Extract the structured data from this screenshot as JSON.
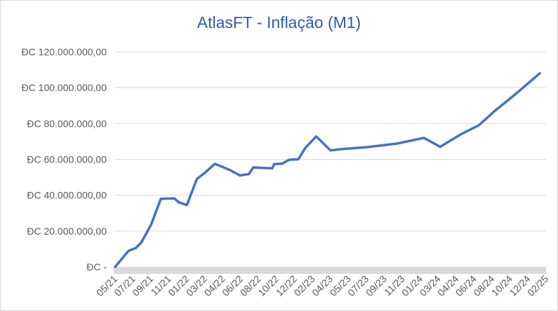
{
  "chart_data": {
    "type": "line",
    "title": "AtlasFT - Inflação (M1)",
    "xlabel": "",
    "ylabel": "",
    "ylim": [
      0,
      120000000
    ],
    "y_tick_labels": [
      "ĐC -",
      "ĐC 20.000.000,00",
      "ĐC 40.000.000,00",
      "ĐC 60.000.000,00",
      "ĐC 80.000.000,00",
      "ĐC 100.000.000,00",
      "ĐC 120.000.000,00"
    ],
    "y_tick_values": [
      0,
      20000000,
      40000000,
      60000000,
      80000000,
      100000000,
      120000000
    ],
    "x_tick_labels": [
      "05/21",
      "07/21",
      "09/21",
      "11/21",
      "01/22",
      "03/22",
      "04/22",
      "06/22",
      "08/22",
      "10/22",
      "12/22",
      "02/23",
      "04/23",
      "05/23",
      "07/23",
      "09/23",
      "11/23",
      "01/24",
      "03/24",
      "04/24",
      "06/24",
      "08/24",
      "10/24",
      "12/24",
      "02/25"
    ],
    "grid": true,
    "line_color": "#4472c4",
    "series": [
      {
        "name": "",
        "points": [
          {
            "x": 0.0,
            "y": 0
          },
          {
            "x": 0.75,
            "y": 9000000
          },
          {
            "x": 1.15,
            "y": 10500000
          },
          {
            "x": 1.45,
            "y": 13500000
          },
          {
            "x": 2.0,
            "y": 23500000
          },
          {
            "x": 2.55,
            "y": 38000000
          },
          {
            "x": 3.3,
            "y": 38200000
          },
          {
            "x": 3.55,
            "y": 36000000
          },
          {
            "x": 4.0,
            "y": 34500000
          },
          {
            "x": 4.55,
            "y": 49000000
          },
          {
            "x": 5.0,
            "y": 52500000
          },
          {
            "x": 5.55,
            "y": 57500000
          },
          {
            "x": 6.4,
            "y": 54000000
          },
          {
            "x": 6.95,
            "y": 51000000
          },
          {
            "x": 7.45,
            "y": 51800000
          },
          {
            "x": 7.7,
            "y": 55500000
          },
          {
            "x": 8.25,
            "y": 55200000
          },
          {
            "x": 8.75,
            "y": 55000000
          },
          {
            "x": 8.85,
            "y": 57300000
          },
          {
            "x": 9.3,
            "y": 57600000
          },
          {
            "x": 9.7,
            "y": 59800000
          },
          {
            "x": 10.2,
            "y": 60000000
          },
          {
            "x": 10.6,
            "y": 66500000
          },
          {
            "x": 11.2,
            "y": 72800000
          },
          {
            "x": 12.0,
            "y": 65000000
          },
          {
            "x": 12.6,
            "y": 65700000
          },
          {
            "x": 14.0,
            "y": 66800000
          },
          {
            "x": 15.7,
            "y": 68800000
          },
          {
            "x": 17.2,
            "y": 72000000
          },
          {
            "x": 18.1,
            "y": 67000000
          },
          {
            "x": 19.25,
            "y": 74000000
          },
          {
            "x": 20.25,
            "y": 79000000
          },
          {
            "x": 21.2,
            "y": 87500000
          },
          {
            "x": 22.25,
            "y": 96000000
          },
          {
            "x": 23.65,
            "y": 108000000
          }
        ]
      }
    ]
  }
}
